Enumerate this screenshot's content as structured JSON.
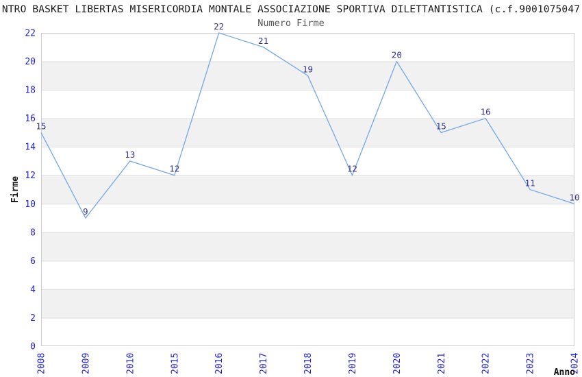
{
  "chart_data": {
    "type": "line",
    "title": "NTRO BASKET LIBERTAS MISERICORDIA MONTALE ASSOCIAZIONE SPORTIVA DILETTANTISTICA (c.f.9001075047",
    "subtitle": "Numero Firme",
    "xlabel": "Anno",
    "ylabel": "Firme",
    "categories": [
      "2008",
      "2009",
      "2010",
      "2015",
      "2016",
      "2017",
      "2018",
      "2019",
      "2020",
      "2021",
      "2022",
      "2023",
      "2024"
    ],
    "values": [
      15,
      9,
      13,
      12,
      22,
      21,
      19,
      12,
      20,
      15,
      16,
      11,
      10
    ],
    "ylim": [
      0,
      22
    ],
    "ytick_step": 2,
    "grid": true,
    "legend_position": "none",
    "gray_bands": [
      [
        2,
        4
      ],
      [
        6,
        8
      ],
      [
        10,
        12
      ],
      [
        14,
        16
      ],
      [
        18,
        20
      ]
    ],
    "colors": {
      "line": "#7cace8",
      "data_label": "#333388",
      "tick_label": "#2222dd",
      "band": "#f1f1f1",
      "grid_line": "#dddddd",
      "plot_border": "#cccccc",
      "title": "#1a1a1a",
      "subtitle": "#555555",
      "axis_title": "#111111",
      "background": "#ffffff"
    }
  }
}
